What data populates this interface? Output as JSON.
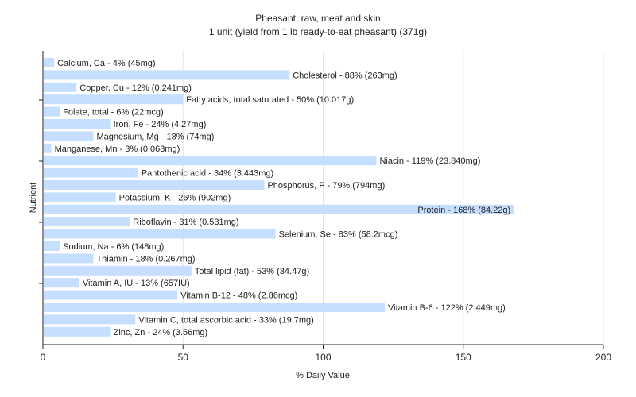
{
  "chart_data": {
    "type": "bar",
    "orientation": "horizontal",
    "title": "Pheasant, raw, meat and skin",
    "subtitle": "1 unit (yield from 1 lb ready-to-eat pheasant) (371g)",
    "xlabel": "% Daily Value",
    "ylabel": "Nutrient",
    "xlim": [
      0,
      200
    ],
    "xticks": [
      0,
      50,
      100,
      150,
      200
    ],
    "grid": true,
    "bar_color": "#c6deff",
    "categories": [
      "Calcium, Ca",
      "Cholesterol",
      "Copper, Cu",
      "Fatty acids, total saturated",
      "Folate, total",
      "Iron, Fe",
      "Magnesium, Mg",
      "Manganese, Mn",
      "Niacin",
      "Pantothenic acid",
      "Phosphorus, P",
      "Potassium, K",
      "Protein",
      "Riboflavin",
      "Selenium, Se",
      "Sodium, Na",
      "Thiamin",
      "Total lipid (fat)",
      "Vitamin A, IU",
      "Vitamin B-12",
      "Vitamin B-6",
      "Vitamin C, total ascorbic acid",
      "Zinc, Zn"
    ],
    "values": [
      4,
      88,
      12,
      50,
      6,
      24,
      18,
      3,
      119,
      34,
      79,
      26,
      168,
      31,
      83,
      6,
      18,
      53,
      13,
      48,
      122,
      33,
      24
    ],
    "labels": [
      "Calcium, Ca - 4% (45mg)",
      "Cholesterol - 88% (263mg)",
      "Copper, Cu - 12% (0.241mg)",
      "Fatty acids, total saturated - 50% (10.017g)",
      "Folate, total - 6% (22mcg)",
      "Iron, Fe - 24% (4.27mg)",
      "Magnesium, Mg - 18% (74mg)",
      "Manganese, Mn - 3% (0.063mg)",
      "Niacin - 119% (23.840mg)",
      "Pantothenic acid - 34% (3.443mg)",
      "Phosphorus, P - 79% (794mg)",
      "Potassium, K - 26% (902mg)",
      "Protein - 168% (84.22g)",
      "Riboflavin - 31% (0.531mg)",
      "Selenium, Se - 83% (58.2mcg)",
      "Sodium, Na - 6% (148mg)",
      "Thiamin - 18% (0.267mg)",
      "Total lipid (fat) - 53% (34.47g)",
      "Vitamin A, IU - 13% (657IU)",
      "Vitamin B-12 - 48% (2.86mcg)",
      "Vitamin B-6 - 122% (2.449mg)",
      "Vitamin C, total ascorbic acid - 33% (19.7mg)",
      "Zinc, Zn - 24% (3.56mg)"
    ]
  }
}
